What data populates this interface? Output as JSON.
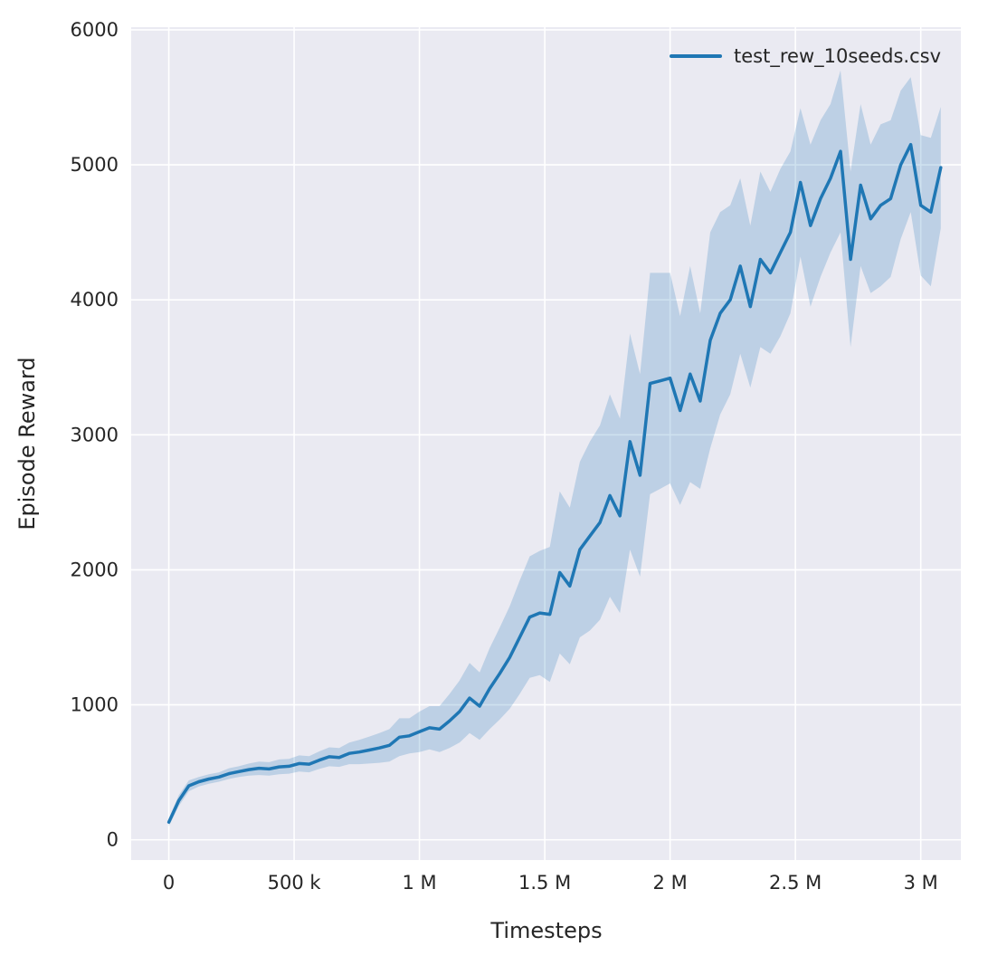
{
  "figure": {
    "plot_background": "#eaeaf2",
    "grid_color": "#ffffff",
    "text_color": "#262626",
    "accent_color": "#1f77b4"
  },
  "chart_data": {
    "type": "line",
    "title": "",
    "xlabel": "Timesteps",
    "ylabel": "Episode Reward",
    "xlim": [
      -150000,
      3160000
    ],
    "ylim": [
      -150,
      6020
    ],
    "grid": true,
    "x_ticks": [
      {
        "value": 0,
        "label": "0"
      },
      {
        "value": 500000,
        "label": "500 k"
      },
      {
        "value": 1000000,
        "label": "1 M"
      },
      {
        "value": 1500000,
        "label": "1.5 M"
      },
      {
        "value": 2000000,
        "label": "2 M"
      },
      {
        "value": 2500000,
        "label": "2.5 M"
      },
      {
        "value": 3000000,
        "label": "3 M"
      }
    ],
    "y_ticks": [
      {
        "value": 0,
        "label": "0"
      },
      {
        "value": 1000,
        "label": "1000"
      },
      {
        "value": 2000,
        "label": "2000"
      },
      {
        "value": 3000,
        "label": "3000"
      },
      {
        "value": 4000,
        "label": "4000"
      },
      {
        "value": 5000,
        "label": "5000"
      },
      {
        "value": 6000,
        "label": "6000"
      }
    ],
    "legend": {
      "position": "upper right",
      "entries": [
        {
          "label": "test_rew_10seeds.csv",
          "color": "#1f77b4"
        }
      ]
    },
    "series": [
      {
        "name": "test_rew_10seeds.csv",
        "color": "#1f77b4",
        "line_width": 3.5,
        "band_alpha": 0.22,
        "x": [
          0,
          40000,
          80000,
          120000,
          160000,
          200000,
          240000,
          280000,
          320000,
          360000,
          400000,
          440000,
          480000,
          520000,
          560000,
          600000,
          640000,
          680000,
          720000,
          760000,
          800000,
          840000,
          880000,
          920000,
          960000,
          1000000,
          1040000,
          1080000,
          1120000,
          1160000,
          1200000,
          1240000,
          1280000,
          1320000,
          1360000,
          1400000,
          1440000,
          1480000,
          1520000,
          1560000,
          1600000,
          1640000,
          1680000,
          1720000,
          1760000,
          1800000,
          1840000,
          1880000,
          1920000,
          1960000,
          2000000,
          2040000,
          2080000,
          2120000,
          2160000,
          2200000,
          2240000,
          2280000,
          2320000,
          2360000,
          2400000,
          2440000,
          2480000,
          2520000,
          2560000,
          2600000,
          2640000,
          2680000,
          2720000,
          2760000,
          2800000,
          2840000,
          2880000,
          2920000,
          2960000,
          3000000,
          3040000,
          3080000
        ],
        "mean": [
          130,
          290,
          400,
          430,
          450,
          465,
          490,
          505,
          520,
          530,
          525,
          540,
          545,
          565,
          560,
          590,
          615,
          610,
          640,
          650,
          665,
          680,
          700,
          760,
          770,
          800,
          830,
          820,
          880,
          950,
          1050,
          990,
          1120,
          1230,
          1350,
          1500,
          1650,
          1680,
          1670,
          1980,
          1880,
          2150,
          2250,
          2350,
          2550,
          2400,
          2950,
          2700,
          3380,
          3400,
          3420,
          3180,
          3450,
          3250,
          3700,
          3900,
          4000,
          4250,
          3950,
          4300,
          4200,
          4350,
          4500,
          4870,
          4550,
          4750,
          4900,
          5100,
          4300,
          4850,
          4600,
          4700,
          4750,
          5000,
          5150,
          4700,
          4650,
          4980
        ],
        "spread": [
          30,
          40,
          40,
          35,
          35,
          35,
          40,
          40,
          45,
          50,
          50,
          55,
          55,
          60,
          60,
          65,
          70,
          70,
          80,
          90,
          100,
          110,
          120,
          140,
          130,
          150,
          160,
          170,
          200,
          230,
          260,
          250,
          300,
          340,
          380,
          420,
          450,
          460,
          500,
          600,
          580,
          650,
          700,
          720,
          750,
          720,
          800,
          750,
          820,
          800,
          780,
          700,
          800,
          650,
          800,
          750,
          700,
          650,
          600,
          650,
          600,
          620,
          600,
          550,
          600,
          580,
          550,
          600,
          650,
          600,
          550,
          600,
          580,
          550,
          500,
          520,
          550,
          450
        ]
      }
    ]
  }
}
